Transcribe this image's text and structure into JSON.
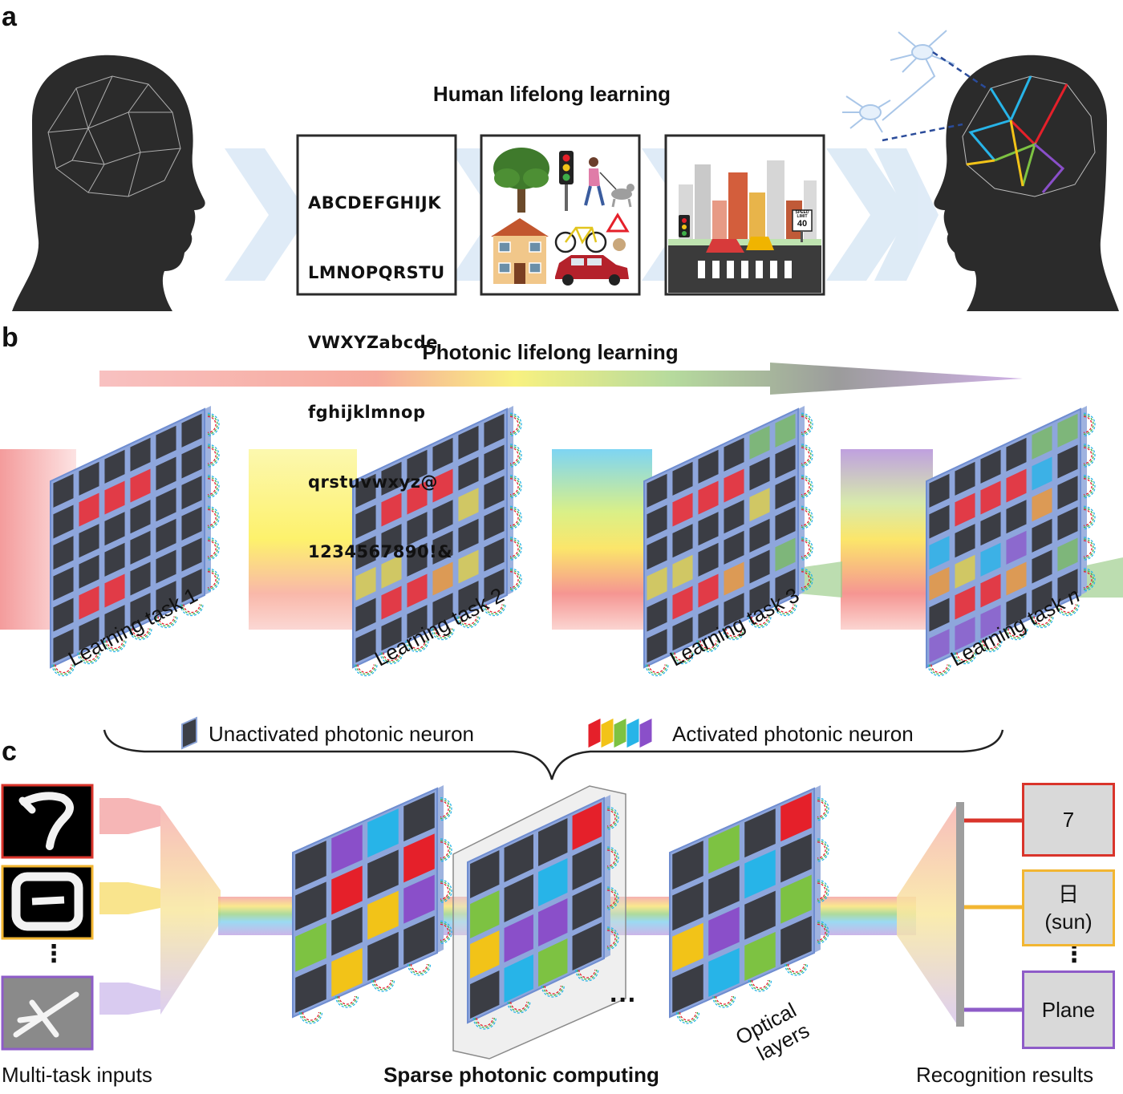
{
  "panels": {
    "a": "a",
    "b": "b",
    "c": "c"
  },
  "panel_a": {
    "title": "Human lifelong learning",
    "alphabet_lines": [
      "ABCDEFGHIJK",
      "LMNOPQRSTU",
      "VWXYZabcde",
      "fghijklmnop",
      "qrstuvwxyz@",
      "1234567890!&"
    ],
    "scene_icons": [
      "tree-icon",
      "traffic-light-icon",
      "walker-with-dog-icon",
      "house-icon",
      "bicycle-icon",
      "warning-sign-icon",
      "car-icon"
    ],
    "city_sign_text": [
      "SPEED",
      "LIMIT",
      "40"
    ]
  },
  "panel_b": {
    "title": "Photonic lifelong learning",
    "tasks": [
      {
        "label": "Learning task 1",
        "color": "#f0323c"
      },
      {
        "label": "Learning task 2",
        "color": "#f5e43a"
      },
      {
        "label": "Learning task 3",
        "color": "#6cc24a"
      },
      {
        "label_prefix": "Learning task ",
        "label_italic": "n",
        "color": "#8e5cc8"
      }
    ],
    "legend": {
      "unactivated": "Unactivated photonic neuron",
      "activated": "Activated photonic neuron",
      "activated_colors": [
        "#e5202a",
        "#f2c318",
        "#7dc242",
        "#27b4e8",
        "#8a4fc9"
      ]
    }
  },
  "panel_c": {
    "inputs_label": "Multi-task inputs",
    "center_label": "Sparse photonic computing",
    "layers_label_line1": "Optical",
    "layers_label_line2": "layers",
    "ellipsis": "···",
    "vertical_dots": "⋮",
    "results_label": "Recognition results",
    "inputs": [
      {
        "name": "digit-seven",
        "border": "#d9342b"
      },
      {
        "name": "character-sun",
        "border": "#f2b632"
      },
      {
        "name": "plane-image",
        "border": "#8e5cc8"
      }
    ],
    "results": [
      {
        "line1": "7",
        "line2": "",
        "border": "#d9342b"
      },
      {
        "line1": "日",
        "line2": "(sun)",
        "border": "#f2b632"
      },
      {
        "line1": "Plane",
        "line2": "",
        "border": "#8e5cc8"
      }
    ]
  }
}
